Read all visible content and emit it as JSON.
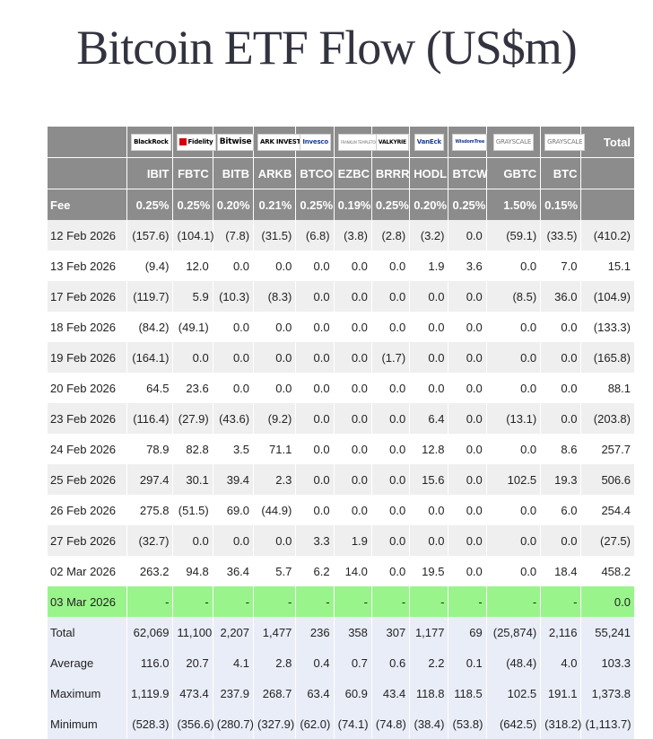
{
  "title": "Bitcoin ETF Flow (US$m)",
  "header": {
    "logos": [
      "BlackRock",
      "Fidelity",
      "Bitwise",
      "ARK INVEST",
      "Invesco",
      "FRANKLIN TEMPLETON",
      "VALKYRIE",
      "VanEck",
      "WisdomTree",
      "GRAYSCALE",
      "GRAYSCALE"
    ],
    "total_label": "Total",
    "tickers": [
      "IBIT",
      "FBTC",
      "BITB",
      "ARKB",
      "BTCO",
      "EZBC",
      "BRRR",
      "HODL",
      "BTCW",
      "GBTC",
      "BTC"
    ],
    "fee_label": "Fee",
    "fees": [
      "0.25%",
      "0.25%",
      "0.20%",
      "0.21%",
      "0.25%",
      "0.19%",
      "0.25%",
      "0.20%",
      "0.25%",
      "1.50%",
      "0.15%"
    ]
  },
  "rows": [
    {
      "date": "12 Feb 2026",
      "values": [
        "(157.6)",
        "(104.1)",
        "(7.8)",
        "(31.5)",
        "(6.8)",
        "(3.8)",
        "(2.8)",
        "(3.2)",
        "0.0",
        "(59.1)",
        "(33.5)",
        "(410.2)"
      ]
    },
    {
      "date": "13 Feb 2026",
      "values": [
        "(9.4)",
        "12.0",
        "0.0",
        "0.0",
        "0.0",
        "0.0",
        "0.0",
        "1.9",
        "3.6",
        "0.0",
        "7.0",
        "15.1"
      ]
    },
    {
      "date": "17 Feb 2026",
      "values": [
        "(119.7)",
        "5.9",
        "(10.3)",
        "(8.3)",
        "0.0",
        "0.0",
        "0.0",
        "0.0",
        "0.0",
        "(8.5)",
        "36.0",
        "(104.9)"
      ]
    },
    {
      "date": "18 Feb 2026",
      "values": [
        "(84.2)",
        "(49.1)",
        "0.0",
        "0.0",
        "0.0",
        "0.0",
        "0.0",
        "0.0",
        "0.0",
        "0.0",
        "0.0",
        "(133.3)"
      ]
    },
    {
      "date": "19 Feb 2026",
      "values": [
        "(164.1)",
        "0.0",
        "0.0",
        "0.0",
        "0.0",
        "0.0",
        "(1.7)",
        "0.0",
        "0.0",
        "0.0",
        "0.0",
        "(165.8)"
      ]
    },
    {
      "date": "20 Feb 2026",
      "values": [
        "64.5",
        "23.6",
        "0.0",
        "0.0",
        "0.0",
        "0.0",
        "0.0",
        "0.0",
        "0.0",
        "0.0",
        "0.0",
        "88.1"
      ]
    },
    {
      "date": "23 Feb 2026",
      "values": [
        "(116.4)",
        "(27.9)",
        "(43.6)",
        "(9.2)",
        "0.0",
        "0.0",
        "0.0",
        "6.4",
        "0.0",
        "(13.1)",
        "0.0",
        "(203.8)"
      ]
    },
    {
      "date": "24 Feb 2026",
      "values": [
        "78.9",
        "82.8",
        "3.5",
        "71.1",
        "0.0",
        "0.0",
        "0.0",
        "12.8",
        "0.0",
        "0.0",
        "8.6",
        "257.7"
      ]
    },
    {
      "date": "25 Feb 2026",
      "values": [
        "297.4",
        "30.1",
        "39.4",
        "2.3",
        "0.0",
        "0.0",
        "0.0",
        "15.6",
        "0.0",
        "102.5",
        "19.3",
        "506.6"
      ]
    },
    {
      "date": "26 Feb 2026",
      "values": [
        "275.8",
        "(51.5)",
        "69.0",
        "(44.9)",
        "0.0",
        "0.0",
        "0.0",
        "0.0",
        "0.0",
        "0.0",
        "6.0",
        "254.4"
      ]
    },
    {
      "date": "27 Feb 2026",
      "values": [
        "(32.7)",
        "0.0",
        "0.0",
        "0.0",
        "3.3",
        "1.9",
        "0.0",
        "0.0",
        "0.0",
        "0.0",
        "0.0",
        "(27.5)"
      ]
    },
    {
      "date": "02 Mar 2026",
      "values": [
        "263.2",
        "94.8",
        "36.4",
        "5.7",
        "6.2",
        "14.0",
        "0.0",
        "19.5",
        "0.0",
        "0.0",
        "18.4",
        "458.2"
      ]
    },
    {
      "date": "03 Mar 2026",
      "values": [
        "-",
        "-",
        "-",
        "-",
        "-",
        "-",
        "-",
        "-",
        "-",
        "-",
        "-",
        "0.0"
      ]
    }
  ],
  "stats": [
    {
      "label": "Total",
      "values": [
        "62,069",
        "11,100",
        "2,207",
        "1,477",
        "236",
        "358",
        "307",
        "1,177",
        "69",
        "(25,874)",
        "2,116",
        "55,241"
      ]
    },
    {
      "label": "Average",
      "values": [
        "116.0",
        "20.7",
        "4.1",
        "2.8",
        "0.4",
        "0.7",
        "0.6",
        "2.2",
        "0.1",
        "(48.4)",
        "4.0",
        "103.3"
      ]
    },
    {
      "label": "Maximum",
      "values": [
        "1,119.9",
        "473.4",
        "237.9",
        "268.7",
        "63.4",
        "60.9",
        "43.4",
        "118.8",
        "118.5",
        "102.5",
        "191.1",
        "1,373.8"
      ]
    },
    {
      "label": "Minimum",
      "values": [
        "(528.3)",
        "(356.6)",
        "(280.7)",
        "(327.9)",
        "(62.0)",
        "(74.1)",
        "(74.8)",
        "(38.4)",
        "(53.8)",
        "(642.5)",
        "(318.2)",
        "(1,113.7)"
      ]
    }
  ],
  "colors": {
    "header_bg": "#8c8c8c",
    "negative": "#d00000",
    "highlight_row": "#99f58b",
    "stats_bg": "#e9edf7",
    "alt_row": "#efefef"
  }
}
